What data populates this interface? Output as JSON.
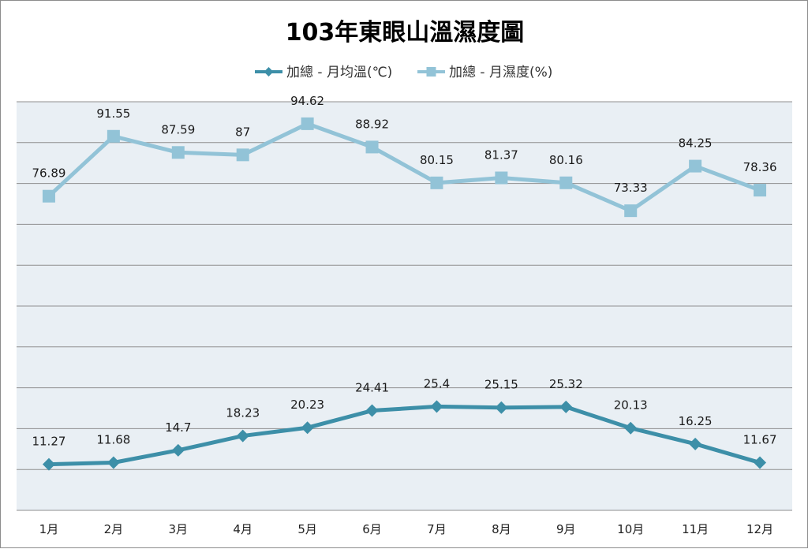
{
  "chart_data": {
    "type": "line",
    "title": "103年東眼山溫濕度圖",
    "categories": [
      "1月",
      "2月",
      "3月",
      "4月",
      "5月",
      "6月",
      "7月",
      "8月",
      "9月",
      "10月",
      "11月",
      "12月"
    ],
    "series": [
      {
        "name": "加總 - 月均溫(℃)",
        "values": [
          11.27,
          11.68,
          14.7,
          18.23,
          20.23,
          24.41,
          25.4,
          25.15,
          25.32,
          20.13,
          16.25,
          11.67
        ],
        "labels": [
          "11.27",
          "11.68",
          "14.7",
          "18.23",
          "20.23",
          "24.41",
          "25.4",
          "25.15",
          "25.32",
          "20.13",
          "16.25",
          "11.67"
        ],
        "color": "#3d8fa8",
        "marker": "diamond"
      },
      {
        "name": "加總 - 月濕度(%)",
        "values": [
          76.89,
          91.55,
          87.59,
          87,
          94.62,
          88.92,
          80.15,
          81.37,
          80.16,
          73.33,
          84.25,
          78.36
        ],
        "labels": [
          "76.89",
          "91.55",
          "87.59",
          "87",
          "94.62",
          "88.92",
          "80.15",
          "81.37",
          "80.16",
          "73.33",
          "84.25",
          "78.36"
        ],
        "color": "#92c3d7",
        "marker": "square"
      }
    ],
    "ylim": [
      0,
      100
    ],
    "grid": true,
    "y_tick_labels_shown": false,
    "legend_position": "top",
    "plot_background": "#e9eff4",
    "gridline_color": "#8f8f8f"
  }
}
